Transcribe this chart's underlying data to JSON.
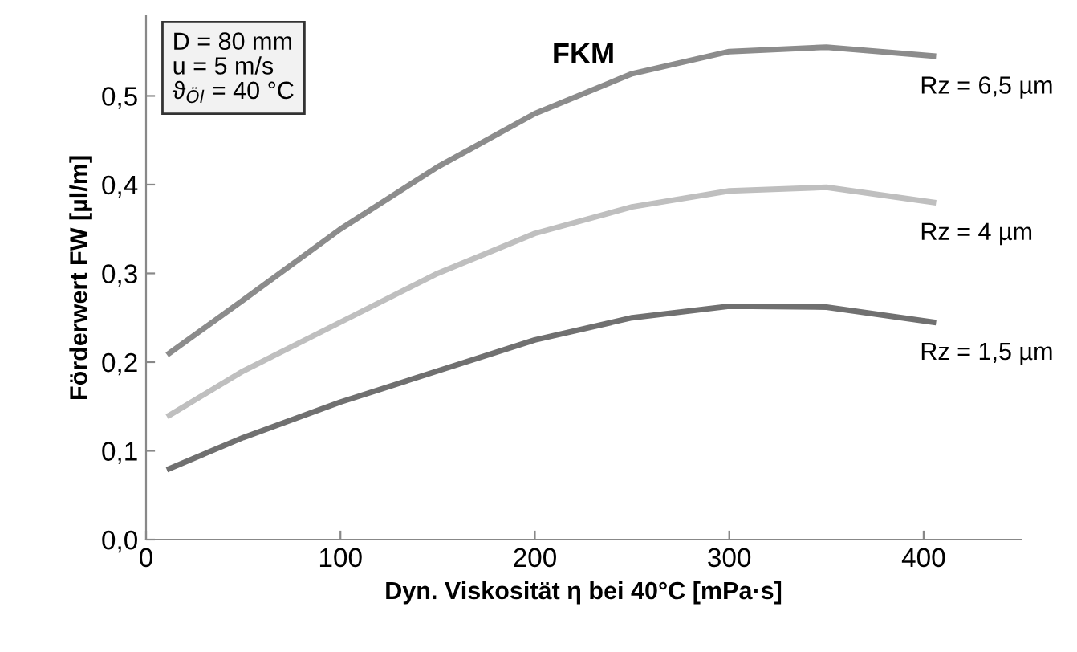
{
  "chart_data": {
    "type": "line",
    "title": "FKM",
    "xlabel": "Dyn. Viskosität η bei 40°C [mPa·s]",
    "ylabel": "Förderwert FW [µl/m]",
    "annotations": [
      "D = 80 mm\nu = 5 m/s\nϑ$_{Öl}$ = 40 °C"
    ],
    "x": [
      12,
      50,
      100,
      150,
      200,
      250,
      300,
      350,
      405
    ],
    "series": [
      {
        "name": "Rz = 6,5 µm",
        "color": "#8c8c8c",
        "values": [
          0.21,
          0.27,
          0.35,
          0.42,
          0.48,
          0.525,
          0.55,
          0.555,
          0.545
        ]
      },
      {
        "name": "Rz = 4 µm",
        "color": "#bfbfbf",
        "values": [
          0.14,
          0.19,
          0.245,
          0.3,
          0.345,
          0.375,
          0.393,
          0.397,
          0.38
        ]
      },
      {
        "name": "Rz = 1,5 µm",
        "color": "#707070",
        "values": [
          0.08,
          0.115,
          0.155,
          0.19,
          0.225,
          0.25,
          0.263,
          0.262,
          0.245
        ]
      }
    ],
    "xlim": [
      0,
      450
    ],
    "xticks": [
      0,
      100,
      200,
      300,
      400
    ],
    "ylim": [
      0,
      0.59
    ],
    "yticks": [
      {
        "value": 0,
        "label": "0,0"
      },
      {
        "value": 0.1,
        "label": "0,1"
      },
      {
        "value": 0.2,
        "label": "0,2"
      },
      {
        "value": 0.3,
        "label": "0,3"
      },
      {
        "value": 0.4,
        "label": "0,4"
      },
      {
        "value": 0.5,
        "label": "0,5"
      }
    ],
    "grid": false,
    "legend": false,
    "marker": "none",
    "line_style": "solid"
  }
}
